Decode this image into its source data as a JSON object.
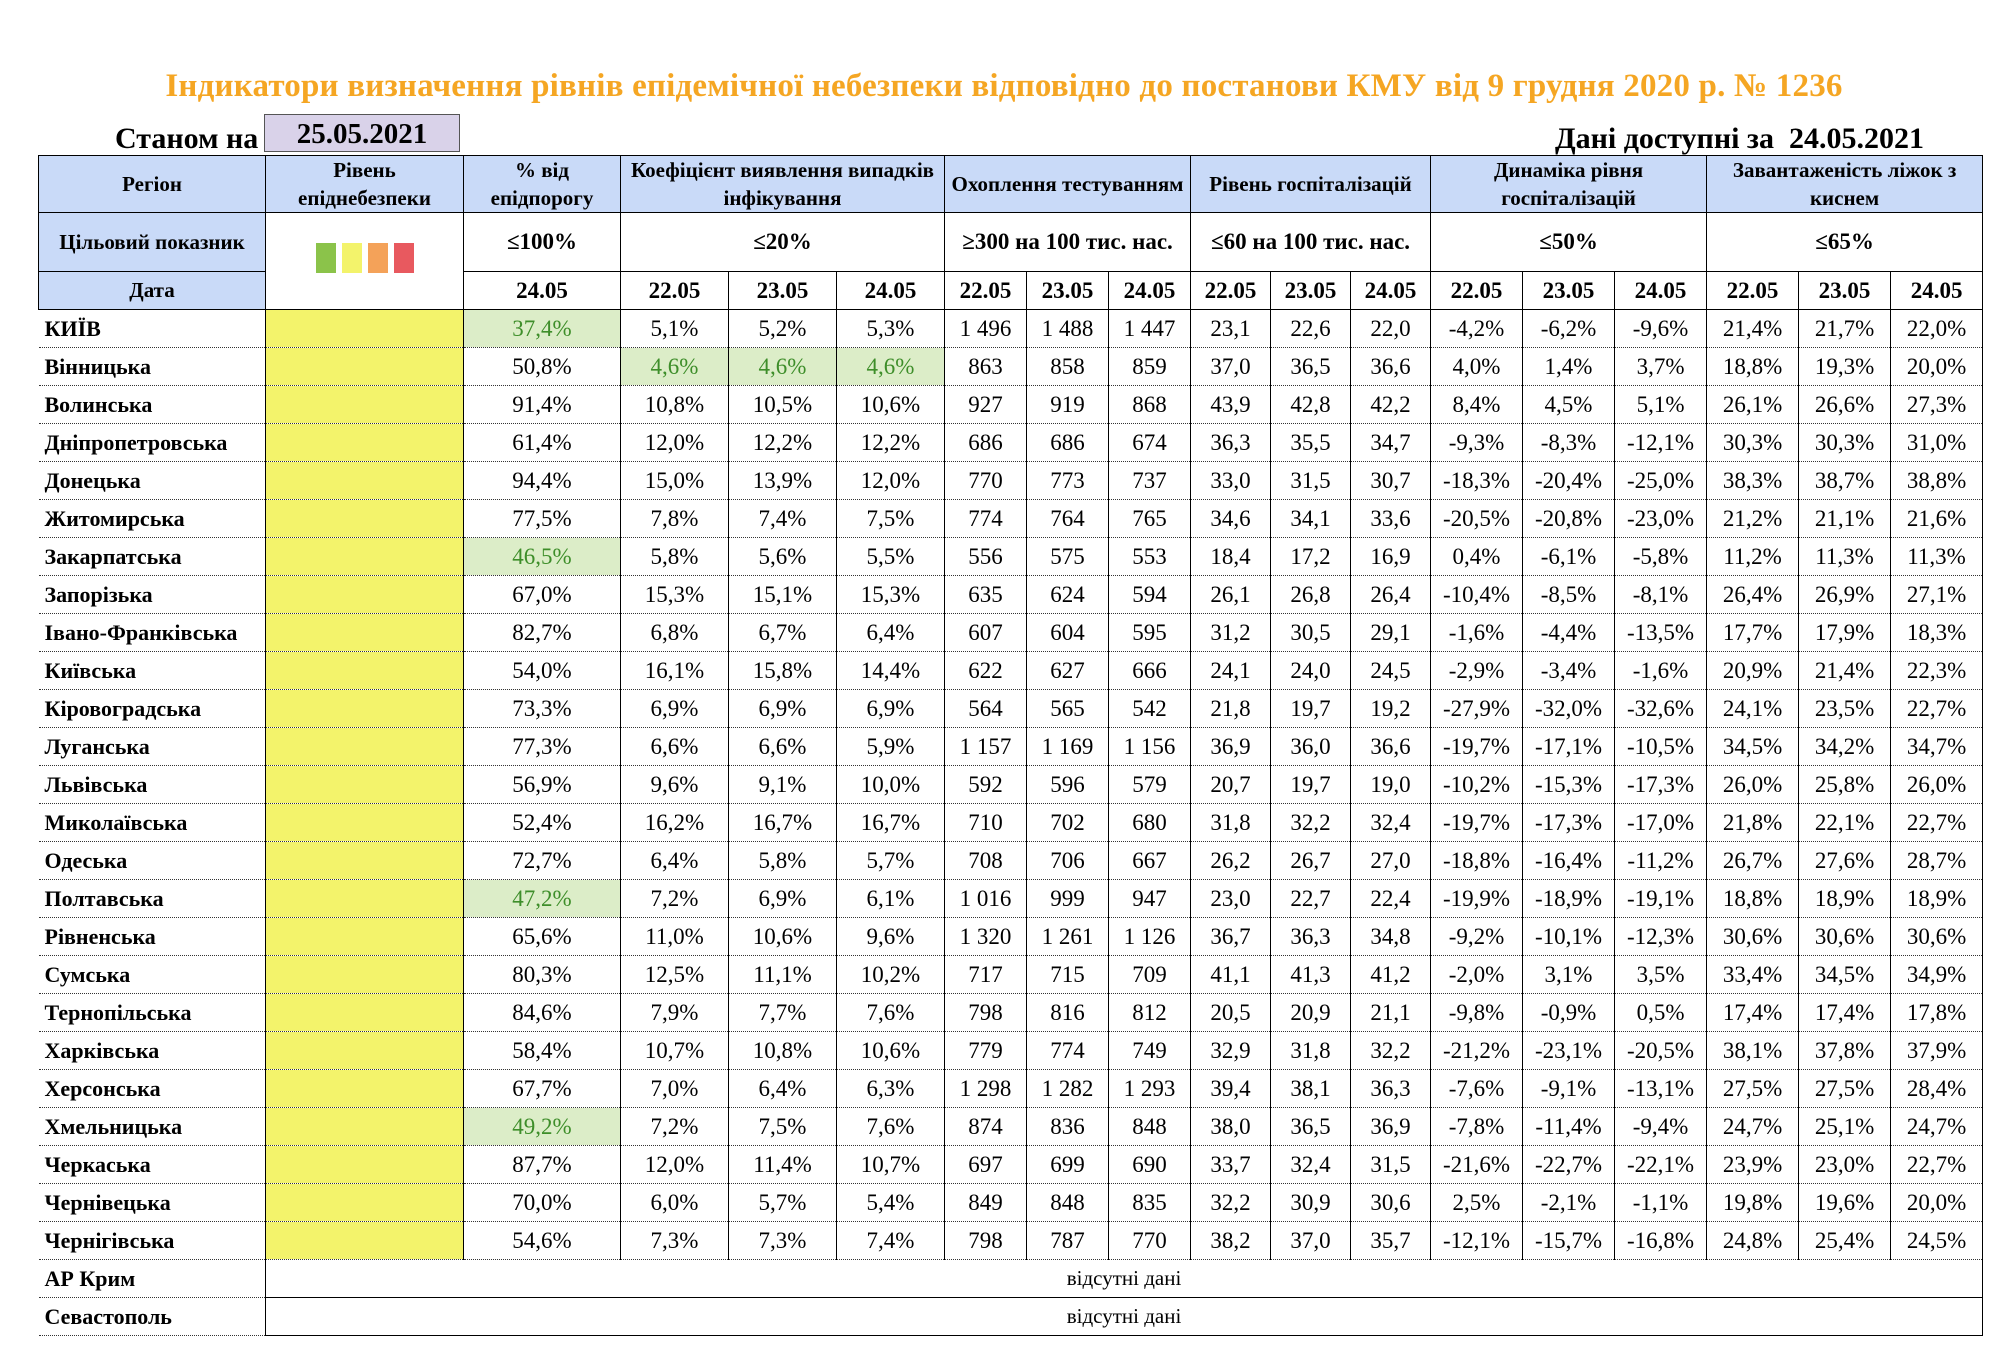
{
  "title": "Індикатори визначення рівнів епідемічної небезпеки відповідно до постанови КМУ від 9 грудня 2020 р. № 1236",
  "as_of_label": "Станом на",
  "as_of_date": "25.05.2021",
  "available_label": "Дані доступні за",
  "available_date": "24.05.2021",
  "headers": {
    "region": "Регіон",
    "level": "Рівень епіднебезпеки",
    "threshold": "% від епідпорогу",
    "detection": "Коефіцієнт виявлення випадків інфікування",
    "testing": "Охоплення тестуванням",
    "hospitalization": "Рівень госпіталізацій",
    "hosp_dynamics": "Динаміка рівня госпіталізацій",
    "oxygen": "Завантаженість ліжок з киснем"
  },
  "targets": {
    "label": "Цільовий показник",
    "threshold": "≤100%",
    "detection": "≤20%",
    "testing": "≥300 на 100 тис. нас.",
    "hospitalization": "≤60 на 100 тис. нас.",
    "hosp_dynamics": "≤50%",
    "oxygen": "≤65%"
  },
  "level_colors": [
    "#8bc34a",
    "#f3f36b",
    "#f4a259",
    "#e8595f"
  ],
  "date_label": "Дата",
  "dates": {
    "threshold": "24.05",
    "d1": "22.05",
    "d2": "23.05",
    "d3": "24.05"
  },
  "regions": [
    {
      "name": "КИЇВ",
      "threshold": "37,4%",
      "detection": [
        "5,1%",
        "5,2%",
        "5,3%"
      ],
      "testing": [
        "1 496",
        "1 488",
        "1 447"
      ],
      "hospitalization": [
        "23,1",
        "22,6",
        "22,0"
      ],
      "dynamics": [
        "-4,2%",
        "-6,2%",
        "-9,6%"
      ],
      "oxygen": [
        "21,4%",
        "21,7%",
        "22,0%"
      ]
    },
    {
      "name": "Вінницька",
      "threshold": "50,8%",
      "detection": [
        "4,6%",
        "4,6%",
        "4,6%"
      ],
      "testing": [
        "863",
        "858",
        "859"
      ],
      "hospitalization": [
        "37,0",
        "36,5",
        "36,6"
      ],
      "dynamics": [
        "4,0%",
        "1,4%",
        "3,7%"
      ],
      "oxygen": [
        "18,8%",
        "19,3%",
        "20,0%"
      ]
    },
    {
      "name": "Волинська",
      "threshold": "91,4%",
      "detection": [
        "10,8%",
        "10,5%",
        "10,6%"
      ],
      "testing": [
        "927",
        "919",
        "868"
      ],
      "hospitalization": [
        "43,9",
        "42,8",
        "42,2"
      ],
      "dynamics": [
        "8,4%",
        "4,5%",
        "5,1%"
      ],
      "oxygen": [
        "26,1%",
        "26,6%",
        "27,3%"
      ]
    },
    {
      "name": "Дніпропетровська",
      "threshold": "61,4%",
      "detection": [
        "12,0%",
        "12,2%",
        "12,2%"
      ],
      "testing": [
        "686",
        "686",
        "674"
      ],
      "hospitalization": [
        "36,3",
        "35,5",
        "34,7"
      ],
      "dynamics": [
        "-9,3%",
        "-8,3%",
        "-12,1%"
      ],
      "oxygen": [
        "30,3%",
        "30,3%",
        "31,0%"
      ]
    },
    {
      "name": "Донецька",
      "threshold": "94,4%",
      "detection": [
        "15,0%",
        "13,9%",
        "12,0%"
      ],
      "testing": [
        "770",
        "773",
        "737"
      ],
      "hospitalization": [
        "33,0",
        "31,5",
        "30,7"
      ],
      "dynamics": [
        "-18,3%",
        "-20,4%",
        "-25,0%"
      ],
      "oxygen": [
        "38,3%",
        "38,7%",
        "38,8%"
      ]
    },
    {
      "name": "Житомирська",
      "threshold": "77,5%",
      "detection": [
        "7,8%",
        "7,4%",
        "7,5%"
      ],
      "testing": [
        "774",
        "764",
        "765"
      ],
      "hospitalization": [
        "34,6",
        "34,1",
        "33,6"
      ],
      "dynamics": [
        "-20,5%",
        "-20,8%",
        "-23,0%"
      ],
      "oxygen": [
        "21,2%",
        "21,1%",
        "21,6%"
      ]
    },
    {
      "name": "Закарпатська",
      "threshold": "46,5%",
      "detection": [
        "5,8%",
        "5,6%",
        "5,5%"
      ],
      "testing": [
        "556",
        "575",
        "553"
      ],
      "hospitalization": [
        "18,4",
        "17,2",
        "16,9"
      ],
      "dynamics": [
        "0,4%",
        "-6,1%",
        "-5,8%"
      ],
      "oxygen": [
        "11,2%",
        "11,3%",
        "11,3%"
      ]
    },
    {
      "name": "Запорізька",
      "threshold": "67,0%",
      "detection": [
        "15,3%",
        "15,1%",
        "15,3%"
      ],
      "testing": [
        "635",
        "624",
        "594"
      ],
      "hospitalization": [
        "26,1",
        "26,8",
        "26,4"
      ],
      "dynamics": [
        "-10,4%",
        "-8,5%",
        "-8,1%"
      ],
      "oxygen": [
        "26,4%",
        "26,9%",
        "27,1%"
      ]
    },
    {
      "name": "Івано-Франківська",
      "threshold": "82,7%",
      "detection": [
        "6,8%",
        "6,7%",
        "6,4%"
      ],
      "testing": [
        "607",
        "604",
        "595"
      ],
      "hospitalization": [
        "31,2",
        "30,5",
        "29,1"
      ],
      "dynamics": [
        "-1,6%",
        "-4,4%",
        "-13,5%"
      ],
      "oxygen": [
        "17,7%",
        "17,9%",
        "18,3%"
      ]
    },
    {
      "name": "Київська",
      "threshold": "54,0%",
      "detection": [
        "16,1%",
        "15,8%",
        "14,4%"
      ],
      "testing": [
        "622",
        "627",
        "666"
      ],
      "hospitalization": [
        "24,1",
        "24,0",
        "24,5"
      ],
      "dynamics": [
        "-2,9%",
        "-3,4%",
        "-1,6%"
      ],
      "oxygen": [
        "20,9%",
        "21,4%",
        "22,3%"
      ]
    },
    {
      "name": "Кіровоградська",
      "threshold": "73,3%",
      "detection": [
        "6,9%",
        "6,9%",
        "6,9%"
      ],
      "testing": [
        "564",
        "565",
        "542"
      ],
      "hospitalization": [
        "21,8",
        "19,7",
        "19,2"
      ],
      "dynamics": [
        "-27,9%",
        "-32,0%",
        "-32,6%"
      ],
      "oxygen": [
        "24,1%",
        "23,5%",
        "22,7%"
      ]
    },
    {
      "name": "Луганська",
      "threshold": "77,3%",
      "detection": [
        "6,6%",
        "6,6%",
        "5,9%"
      ],
      "testing": [
        "1 157",
        "1 169",
        "1 156"
      ],
      "hospitalization": [
        "36,9",
        "36,0",
        "36,6"
      ],
      "dynamics": [
        "-19,7%",
        "-17,1%",
        "-10,5%"
      ],
      "oxygen": [
        "34,5%",
        "34,2%",
        "34,7%"
      ]
    },
    {
      "name": "Львівська",
      "threshold": "56,9%",
      "detection": [
        "9,6%",
        "9,1%",
        "10,0%"
      ],
      "testing": [
        "592",
        "596",
        "579"
      ],
      "hospitalization": [
        "20,7",
        "19,7",
        "19,0"
      ],
      "dynamics": [
        "-10,2%",
        "-15,3%",
        "-17,3%"
      ],
      "oxygen": [
        "26,0%",
        "25,8%",
        "26,0%"
      ]
    },
    {
      "name": "Миколаївська",
      "threshold": "52,4%",
      "detection": [
        "16,2%",
        "16,7%",
        "16,7%"
      ],
      "testing": [
        "710",
        "702",
        "680"
      ],
      "hospitalization": [
        "31,8",
        "32,2",
        "32,4"
      ],
      "dynamics": [
        "-19,7%",
        "-17,3%",
        "-17,0%"
      ],
      "oxygen": [
        "21,8%",
        "22,1%",
        "22,7%"
      ]
    },
    {
      "name": "Одеська",
      "threshold": "72,7%",
      "detection": [
        "6,4%",
        "5,8%",
        "5,7%"
      ],
      "testing": [
        "708",
        "706",
        "667"
      ],
      "hospitalization": [
        "26,2",
        "26,7",
        "27,0"
      ],
      "dynamics": [
        "-18,8%",
        "-16,4%",
        "-11,2%"
      ],
      "oxygen": [
        "26,7%",
        "27,6%",
        "28,7%"
      ]
    },
    {
      "name": "Полтавська",
      "threshold": "47,2%",
      "detection": [
        "7,2%",
        "6,9%",
        "6,1%"
      ],
      "testing": [
        "1 016",
        "999",
        "947"
      ],
      "hospitalization": [
        "23,0",
        "22,7",
        "22,4"
      ],
      "dynamics": [
        "-19,9%",
        "-18,9%",
        "-19,1%"
      ],
      "oxygen": [
        "18,8%",
        "18,9%",
        "18,9%"
      ]
    },
    {
      "name": "Рівненська",
      "threshold": "65,6%",
      "detection": [
        "11,0%",
        "10,6%",
        "9,6%"
      ],
      "testing": [
        "1 320",
        "1 261",
        "1 126"
      ],
      "hospitalization": [
        "36,7",
        "36,3",
        "34,8"
      ],
      "dynamics": [
        "-9,2%",
        "-10,1%",
        "-12,3%"
      ],
      "oxygen": [
        "30,6%",
        "30,6%",
        "30,6%"
      ]
    },
    {
      "name": "Сумська",
      "threshold": "80,3%",
      "detection": [
        "12,5%",
        "11,1%",
        "10,2%"
      ],
      "testing": [
        "717",
        "715",
        "709"
      ],
      "hospitalization": [
        "41,1",
        "41,3",
        "41,2"
      ],
      "dynamics": [
        "-2,0%",
        "3,1%",
        "3,5%"
      ],
      "oxygen": [
        "33,4%",
        "34,5%",
        "34,9%"
      ]
    },
    {
      "name": "Тернопільська",
      "threshold": "84,6%",
      "detection": [
        "7,9%",
        "7,7%",
        "7,6%"
      ],
      "testing": [
        "798",
        "816",
        "812"
      ],
      "hospitalization": [
        "20,5",
        "20,9",
        "21,1"
      ],
      "dynamics": [
        "-9,8%",
        "-0,9%",
        "0,5%"
      ],
      "oxygen": [
        "17,4%",
        "17,4%",
        "17,8%"
      ]
    },
    {
      "name": "Харківська",
      "threshold": "58,4%",
      "detection": [
        "10,7%",
        "10,8%",
        "10,6%"
      ],
      "testing": [
        "779",
        "774",
        "749"
      ],
      "hospitalization": [
        "32,9",
        "31,8",
        "32,2"
      ],
      "dynamics": [
        "-21,2%",
        "-23,1%",
        "-20,5%"
      ],
      "oxygen": [
        "38,1%",
        "37,8%",
        "37,9%"
      ]
    },
    {
      "name": "Херсонська",
      "threshold": "67,7%",
      "detection": [
        "7,0%",
        "6,4%",
        "6,3%"
      ],
      "testing": [
        "1 298",
        "1 282",
        "1 293"
      ],
      "hospitalization": [
        "39,4",
        "38,1",
        "36,3"
      ],
      "dynamics": [
        "-7,6%",
        "-9,1%",
        "-13,1%"
      ],
      "oxygen": [
        "27,5%",
        "27,5%",
        "28,4%"
      ]
    },
    {
      "name": "Хмельницька",
      "threshold": "49,2%",
      "detection": [
        "7,2%",
        "7,5%",
        "7,6%"
      ],
      "testing": [
        "874",
        "836",
        "848"
      ],
      "hospitalization": [
        "38,0",
        "36,5",
        "36,9"
      ],
      "dynamics": [
        "-7,8%",
        "-11,4%",
        "-9,4%"
      ],
      "oxygen": [
        "24,7%",
        "25,1%",
        "24,7%"
      ]
    },
    {
      "name": "Черкаська",
      "threshold": "87,7%",
      "detection": [
        "12,0%",
        "11,4%",
        "10,7%"
      ],
      "testing": [
        "697",
        "699",
        "690"
      ],
      "hospitalization": [
        "33,7",
        "32,4",
        "31,5"
      ],
      "dynamics": [
        "-21,6%",
        "-22,7%",
        "-22,1%"
      ],
      "oxygen": [
        "23,9%",
        "23,0%",
        "22,7%"
      ]
    },
    {
      "name": "Чернівецька",
      "threshold": "70,0%",
      "detection": [
        "6,0%",
        "5,7%",
        "5,4%"
      ],
      "testing": [
        "849",
        "848",
        "835"
      ],
      "hospitalization": [
        "32,2",
        "30,9",
        "30,6"
      ],
      "dynamics": [
        "2,5%",
        "-2,1%",
        "-1,1%"
      ],
      "oxygen": [
        "19,8%",
        "19,6%",
        "20,0%"
      ]
    },
    {
      "name": "Чернігівська",
      "threshold": "54,6%",
      "detection": [
        "7,3%",
        "7,3%",
        "7,4%"
      ],
      "testing": [
        "798",
        "787",
        "770"
      ],
      "hospitalization": [
        "38,2",
        "37,0",
        "35,7"
      ],
      "dynamics": [
        "-12,1%",
        "-15,7%",
        "-16,8%"
      ],
      "oxygen": [
        "24,8%",
        "25,4%",
        "24,5%"
      ]
    }
  ],
  "green_threshold_regions": [
    "КИЇВ",
    "Закарпатська",
    "Полтавська",
    "Хмельницька"
  ],
  "green_detection_regions": [
    "Вінницька"
  ],
  "level_cell_color": "#f3f36b",
  "highlight_color": "#dcedc8",
  "missing": [
    {
      "name": "АР Крим",
      "text": "відсутні дані"
    },
    {
      "name": "Севастополь",
      "text": "відсутні дані"
    }
  ]
}
